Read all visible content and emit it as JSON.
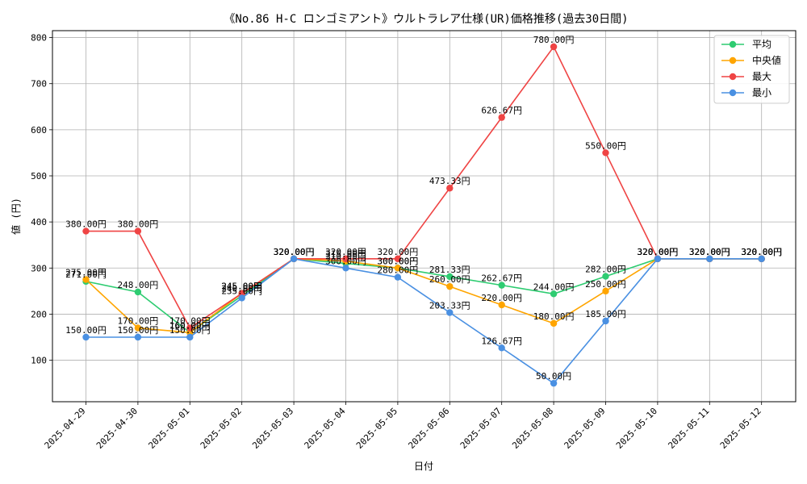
{
  "chart_data": {
    "type": "line",
    "title": "《No.86 H-C ロンゴミアント》ウルトラレア仕様(UR)価格推移(過去30日間)",
    "xlabel": "日付",
    "ylabel": "値 (円)",
    "ylim": [
      10,
      815
    ],
    "yticks": [
      100,
      200,
      300,
      400,
      500,
      600,
      700,
      800
    ],
    "grid": true,
    "legend_position": "top-right",
    "label_suffix": "円",
    "categories": [
      "2025-04-29",
      "2025-04-30",
      "2025-05-01",
      "2025-05-02",
      "2025-05-03",
      "2025-05-04",
      "2025-05-05",
      "2025-05-06",
      "2025-05-07",
      "2025-05-08",
      "2025-05-09",
      "2025-05-10",
      "2025-05-11",
      "2025-05-12"
    ],
    "series": [
      {
        "name": "平均",
        "color": "#2ecc71",
        "values": [
          271.0,
          248.0,
          160.0,
          240.0,
          320.0,
          310.0,
          300.0,
          281.33,
          262.67,
          244.0,
          282.0,
          320.0,
          320.0,
          320.0
        ]
      },
      {
        "name": "中央値",
        "color": "#ffa500",
        "values": [
          275.0,
          170.0,
          160.0,
          245.0,
          320.0,
          315.0,
          300.0,
          260.0,
          220.0,
          180.0,
          250.0,
          320.0,
          320.0,
          320.0
        ]
      },
      {
        "name": "最大",
        "color": "#ef4444",
        "values": [
          380.0,
          380.0,
          170.0,
          245.0,
          320.0,
          320.0,
          320.0,
          473.33,
          626.67,
          780.0,
          550.0,
          320.0,
          320.0,
          320.0
        ]
      },
      {
        "name": "最小",
        "color": "#4a90e2",
        "values": [
          150.0,
          150.0,
          150.0,
          235.0,
          320.0,
          300.0,
          280.0,
          203.33,
          126.67,
          50.0,
          185.0,
          320.0,
          320.0,
          320.0
        ]
      }
    ]
  }
}
